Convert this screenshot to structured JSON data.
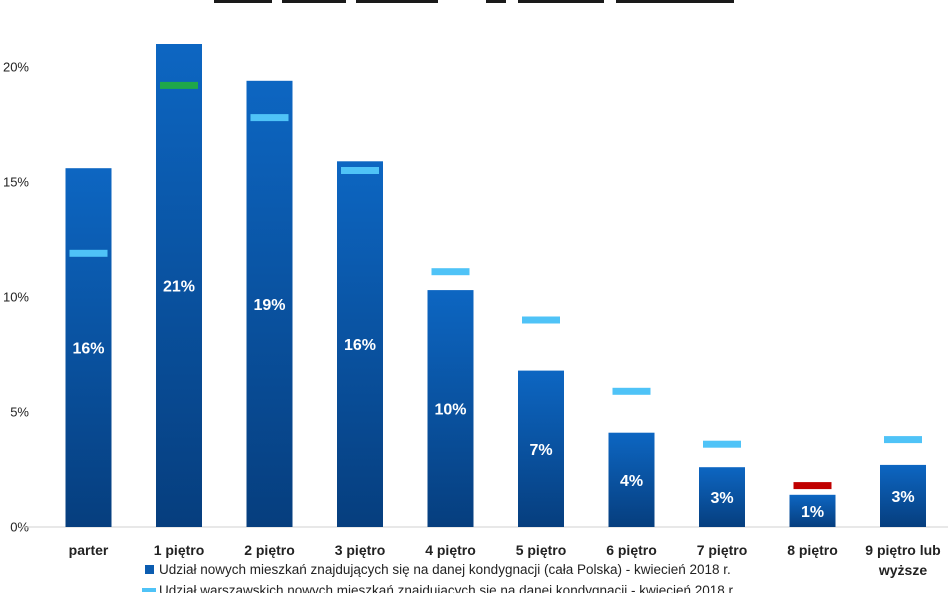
{
  "chart_data": {
    "type": "bar",
    "title": "",
    "xlabel": "",
    "ylabel": "",
    "ylim": [
      0,
      22
    ],
    "y_ticks": [
      0,
      5,
      10,
      15,
      20
    ],
    "y_tick_labels": [
      "0%",
      "5%",
      "10%",
      "15%",
      "20%"
    ],
    "grid": false,
    "categories": [
      "parter",
      "1 piętro",
      "2 piętro",
      "3 piętro",
      "4 piętro",
      "5 piętro",
      "6 piętro",
      "7 piętro",
      "8 piętro",
      "9 piętro lub wyższe"
    ],
    "category_lines": [
      [
        "parter"
      ],
      [
        "1 piętro"
      ],
      [
        "2 piętro"
      ],
      [
        "3 piętro"
      ],
      [
        "4 piętro"
      ],
      [
        "5 piętro"
      ],
      [
        "6 piętro"
      ],
      [
        "7 piętro"
      ],
      [
        "8 piętro"
      ],
      [
        "9 piętro lub",
        "wyższe"
      ]
    ],
    "series": [
      {
        "name": "Udział nowych mieszkań znajdujących się na danej kondygnacji (cała Polska) - kwiecień 2018 r.",
        "kind": "bar",
        "color": "#0b5cb0",
        "values": [
          15.6,
          21.0,
          19.4,
          15.9,
          10.3,
          6.8,
          4.1,
          2.6,
          1.4,
          2.7
        ],
        "data_labels": [
          "16%",
          "21%",
          "19%",
          "16%",
          "10%",
          "7%",
          "4%",
          "3%",
          "1%",
          "3%"
        ]
      },
      {
        "name": "Udział warszawskich nowych mieszkań znajdujących się na danej kondygnacji - kwiecień 2018 r.",
        "kind": "marker",
        "color": "#4fc3f7",
        "values": [
          11.9,
          19.2,
          17.8,
          15.5,
          11.1,
          9.0,
          5.9,
          3.6,
          1.8,
          3.8
        ],
        "marker_colors": [
          "#4fc3f7",
          "#1fa84a",
          "#4fc3f7",
          "#4fc3f7",
          "#4fc3f7",
          "#4fc3f7",
          "#4fc3f7",
          "#4fc3f7",
          "#c00000",
          "#4fc3f7"
        ]
      }
    ],
    "legend_position": "bottom"
  }
}
